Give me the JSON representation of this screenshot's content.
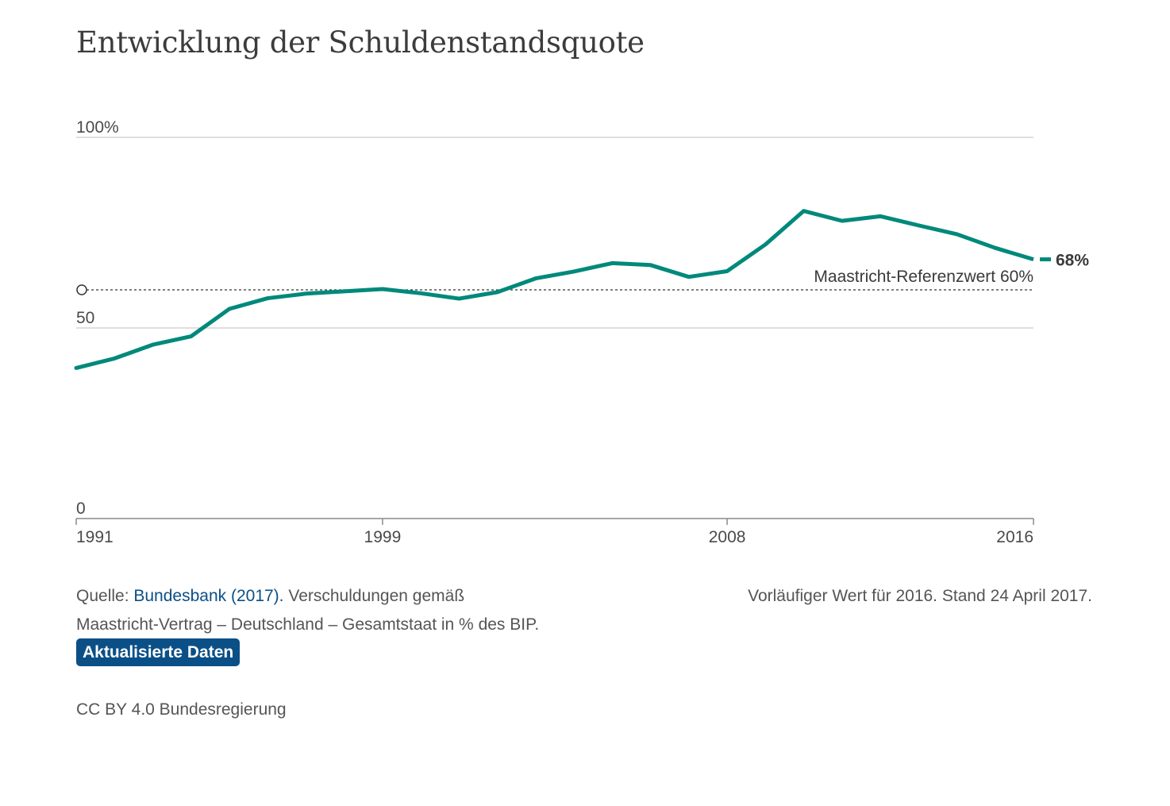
{
  "title": "Entwicklung der Schuldenstandsquote",
  "colors": {
    "line": "#00897b",
    "grid": "#cccccc",
    "reference": "#333333",
    "link": "#0b4f87",
    "badge": "#0b4f87"
  },
  "chart_data": {
    "type": "line",
    "title": "Entwicklung der Schuldenstandsquote",
    "xlabel": "",
    "ylabel": "",
    "xlim": [
      1991,
      2016
    ],
    "ylim": [
      0,
      100
    ],
    "grid": true,
    "x_ticks": [
      "1991",
      "1999",
      "2008",
      "2016"
    ],
    "y_ticks": [
      {
        "value": 100,
        "label": "100%"
      },
      {
        "value": 50,
        "label": "50"
      },
      {
        "value": 0,
        "label": "0"
      }
    ],
    "series": [
      {
        "x": [
          1991,
          1992,
          1993,
          1994,
          1995,
          1996,
          1997,
          1998,
          1999,
          2000,
          2001,
          2002,
          2003,
          2004,
          2005,
          2006,
          2007,
          2008,
          2009,
          2010,
          2011,
          2012,
          2013,
          2014,
          2015
        ],
        "values": [
          39.5,
          42.0,
          45.6,
          47.8,
          55.0,
          57.8,
          59.0,
          59.6,
          60.2,
          59.1,
          57.7,
          59.4,
          63.0,
          64.8,
          67.0,
          66.5,
          63.4,
          64.9,
          71.9,
          80.7,
          78.1,
          79.3,
          76.9,
          74.6,
          71.0
        ]
      }
    ],
    "preliminary": {
      "x": [
        2015,
        2016
      ],
      "values": [
        71.0,
        68.0
      ]
    },
    "end_label": "68%",
    "reference_line": {
      "value": 60,
      "label": "Maastricht-Referenzwert 60%"
    }
  },
  "footer": {
    "source_prefix": "Quelle: ",
    "source_link": "Bundesbank (2017).",
    "source_text_line1": " Verschuldungen gemäß",
    "source_text_line2": "Maastricht-Vertrag – Deutschland – Gesamtstaat in % des BIP.",
    "badge_label": "Aktualisierte Daten",
    "note": "Vorläufiger Wert für 2016. Stand 24 April 2017.",
    "license": "CC BY 4.0 Bundesregierung"
  }
}
